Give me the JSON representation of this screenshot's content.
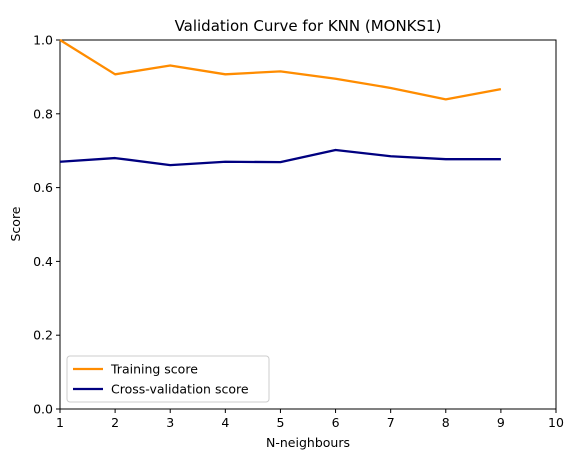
{
  "chart_data": {
    "type": "line",
    "title": "Validation Curve for KNN (MONKS1)",
    "xlabel": "N-neighbours",
    "ylabel": "Score",
    "xlim": [
      1,
      10
    ],
    "ylim": [
      0.0,
      1.0
    ],
    "x_ticks": [
      "1",
      "2",
      "3",
      "4",
      "5",
      "6",
      "7",
      "8",
      "9",
      "10"
    ],
    "y_ticks": [
      "0.0",
      "0.2",
      "0.4",
      "0.6",
      "0.8",
      "1.0"
    ],
    "x": [
      1,
      2,
      3,
      4,
      5,
      6,
      7,
      8,
      9
    ],
    "series": [
      {
        "name": "Training score",
        "color": "#ff8c00",
        "values": [
          1.0,
          0.907,
          0.931,
          0.907,
          0.915,
          0.895,
          0.87,
          0.839,
          0.867
        ]
      },
      {
        "name": "Cross-validation score",
        "color": "#000080",
        "values": [
          0.67,
          0.68,
          0.661,
          0.67,
          0.669,
          0.702,
          0.685,
          0.677,
          0.677
        ]
      }
    ],
    "grid": false,
    "legend_position": "lower-left"
  }
}
